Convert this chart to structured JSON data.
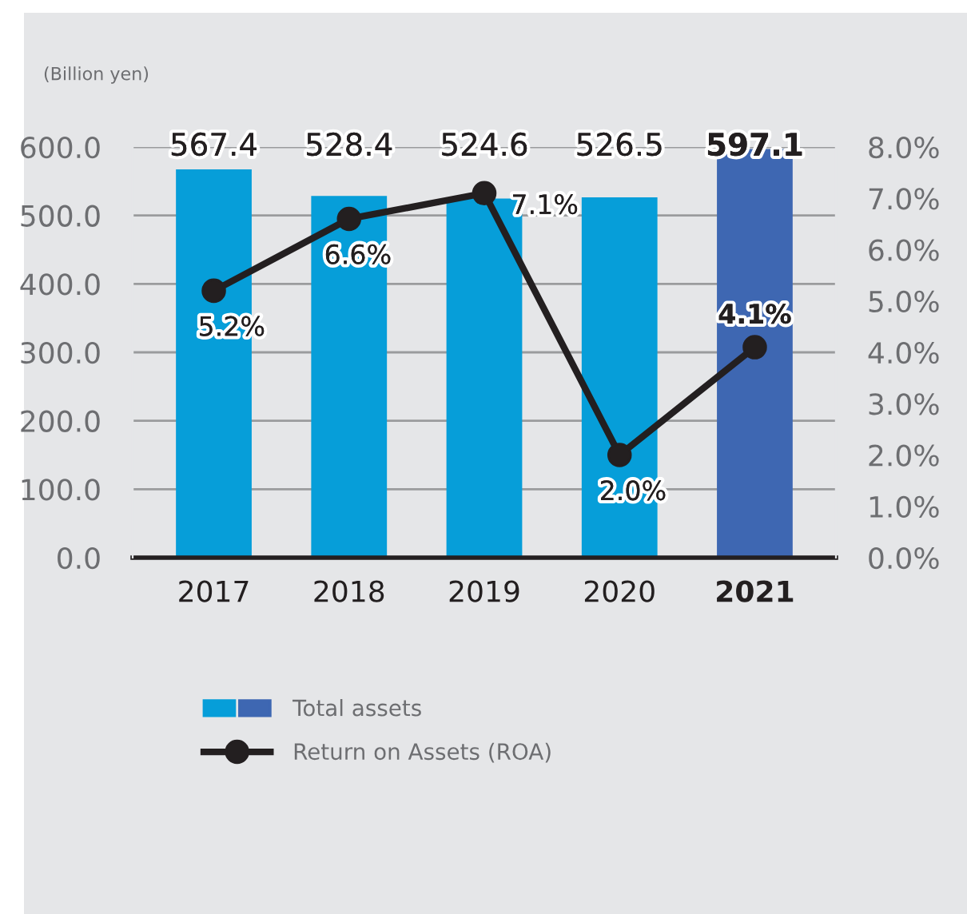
{
  "chart_data": {
    "type": "bar",
    "ylabel": "(Billion yen)",
    "categories": [
      "2017",
      "2018",
      "2019",
      "2020",
      "2021"
    ],
    "series": [
      {
        "name": "Total assets",
        "color": "#069ed9",
        "colors": [
          "#069ed9",
          "#069ed9",
          "#069ed9",
          "#069ed9",
          "#3e67b2"
        ],
        "values": [
          567.4,
          528.4,
          524.6,
          526.5,
          597.1
        ]
      },
      {
        "name": "Return on Assets (ROA)",
        "type": "line",
        "axis": "y2",
        "color": "#231f20",
        "marker": "circle",
        "values": [
          5.2,
          6.6,
          7.1,
          2.0,
          4.1
        ],
        "value_labels": [
          "5.2%",
          "6.6%",
          "7.1%",
          "2.0%",
          "4.1%"
        ]
      }
    ],
    "data_labels": true,
    "ylim": [
      0,
      600
    ],
    "yticks": [
      {
        "value": 0,
        "label": "0.0"
      },
      {
        "value": 100,
        "label": "100.0"
      },
      {
        "value": 200,
        "label": "200.0"
      },
      {
        "value": 300,
        "label": "300.0"
      },
      {
        "value": 400,
        "label": "400.0"
      },
      {
        "value": 500,
        "label": "500.0"
      },
      {
        "value": 600,
        "label": "600.0"
      }
    ],
    "y2lim": [
      0,
      8
    ],
    "y2ticks": [
      {
        "value": 0,
        "label": "0.0%"
      },
      {
        "value": 1,
        "label": "1.0%"
      },
      {
        "value": 2,
        "label": "2.0%"
      },
      {
        "value": 3,
        "label": "3.0%"
      },
      {
        "value": 4,
        "label": "4.0%"
      },
      {
        "value": 5,
        "label": "5.0%"
      },
      {
        "value": 6,
        "label": "6.0%"
      },
      {
        "value": 7,
        "label": "7.0%"
      },
      {
        "value": 8,
        "label": "8.0%"
      }
    ],
    "grid": "y",
    "legend": "bottom"
  }
}
